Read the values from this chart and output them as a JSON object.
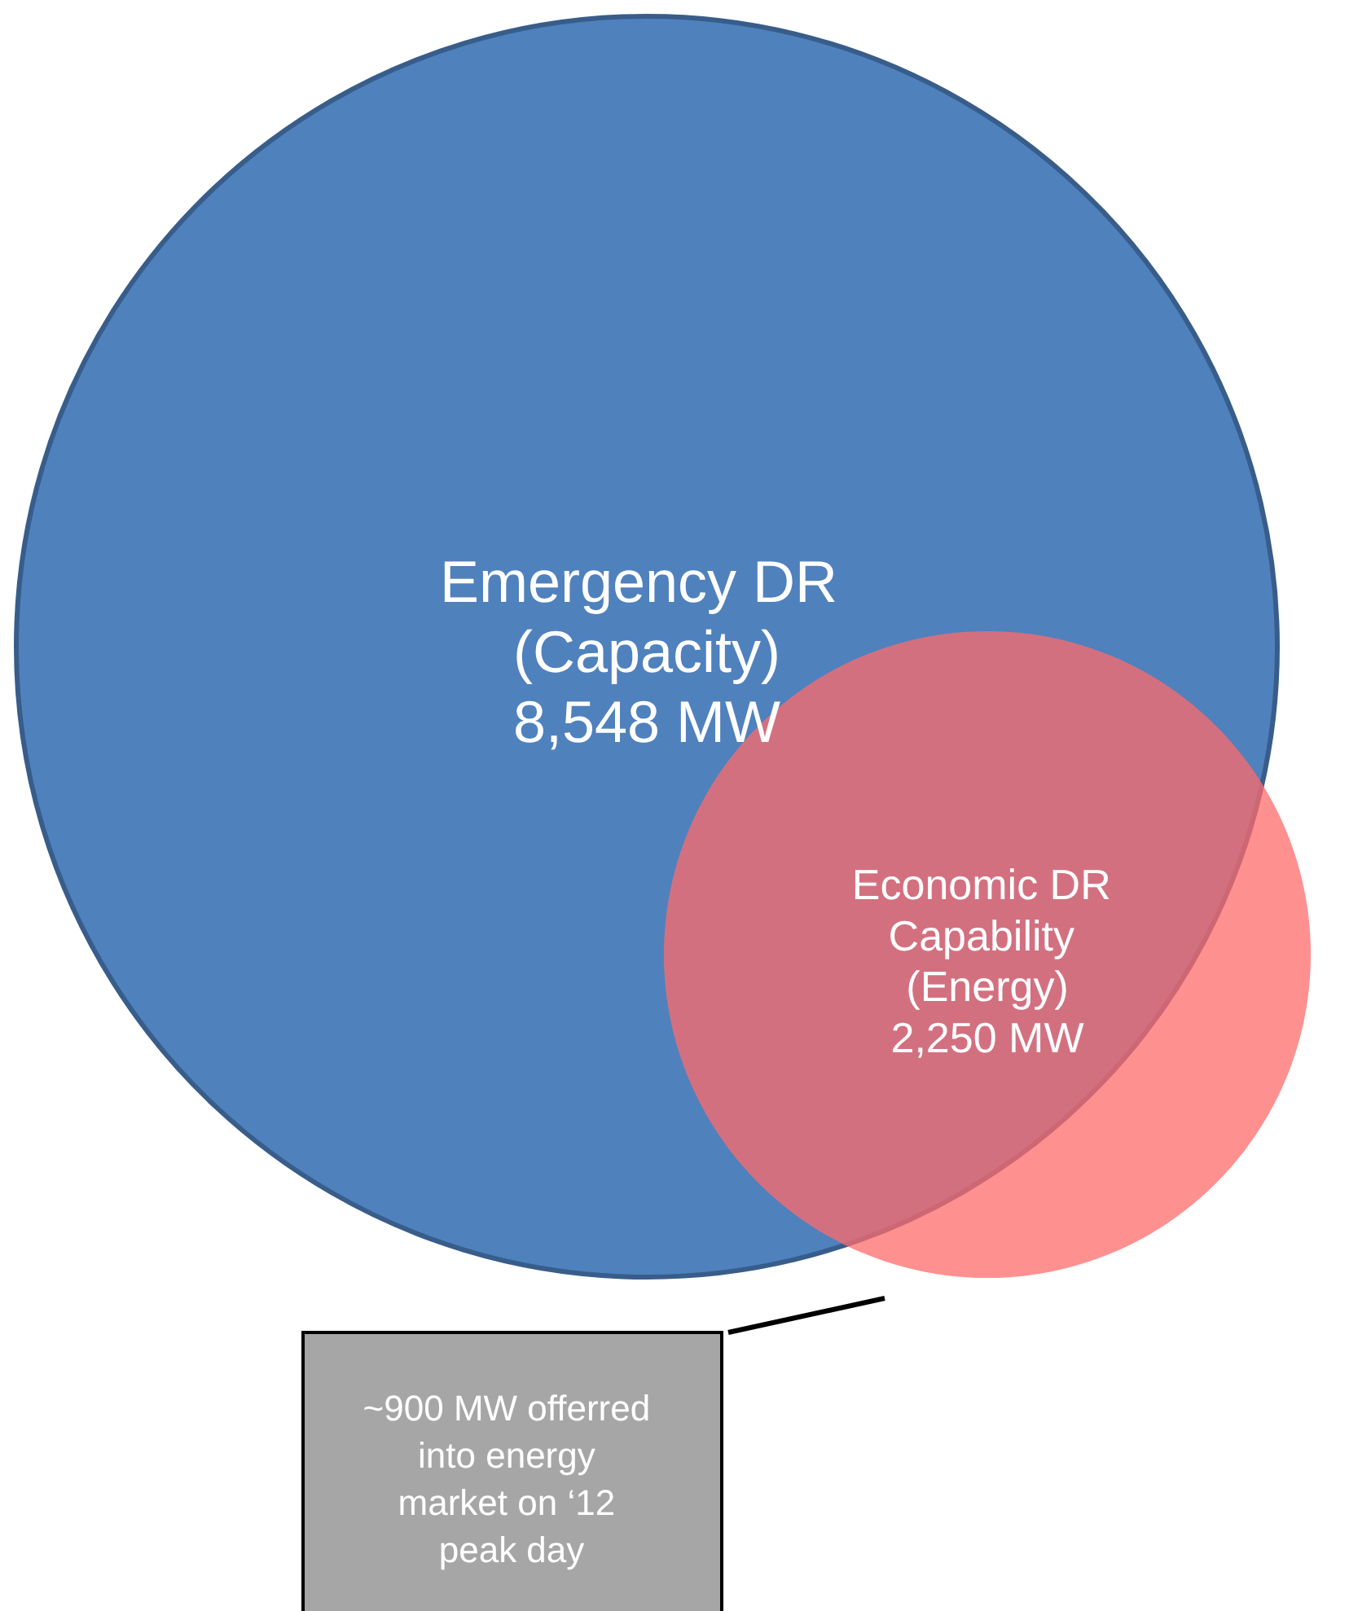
{
  "chart_data": {
    "type": "other",
    "categories": [
      "Emergency DR (Capacity)",
      "Economic DR Capability (Energy)"
    ],
    "values": [
      8548,
      2250
    ],
    "value_labels": [
      "8,548 MW",
      "2,250 MW"
    ],
    "colors": [
      "#4f81bd",
      "#ff6b6b"
    ],
    "annotations": [
      "~900 MW offerred into energy market on ‘12 peak day"
    ]
  }
}
